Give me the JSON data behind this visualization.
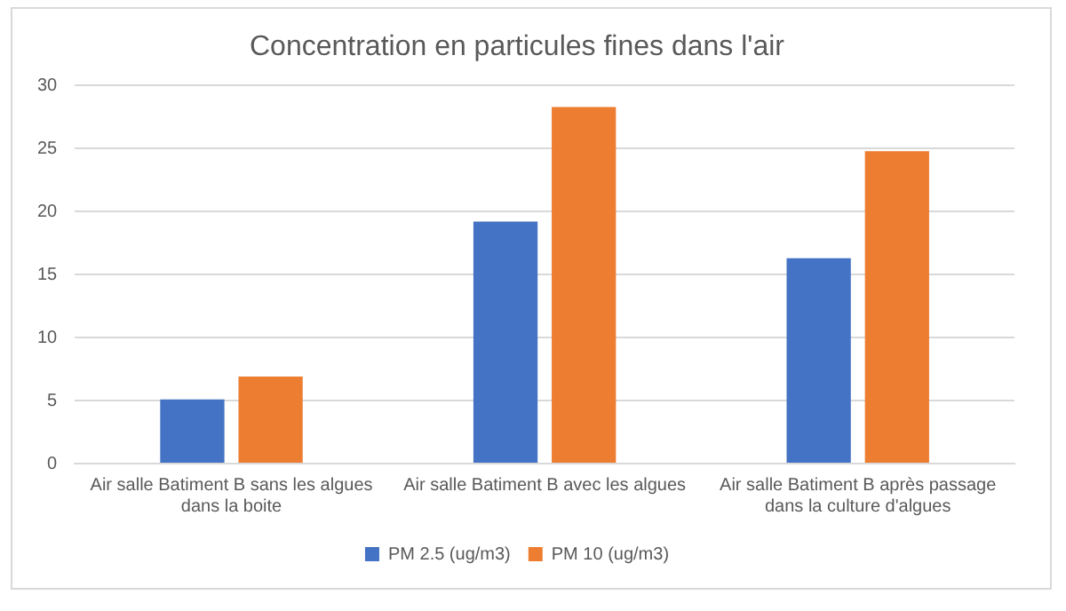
{
  "chart_data": {
    "type": "bar",
    "title": "Concentration en particules fines dans l'air",
    "categories": [
      "Air salle Batiment B sans les algues dans la boite",
      "Air salle Batiment B avec les algues",
      "Air salle Batiment B après passage dans la culture d'algues"
    ],
    "series": [
      {
        "name": "PM 2.5 (ug/m3)",
        "color": "#4472c4",
        "values": [
          5.1,
          19.2,
          16.3
        ]
      },
      {
        "name": "PM 10 (ug/m3)",
        "color": "#ed7d31",
        "values": [
          6.9,
          28.3,
          24.8
        ]
      }
    ],
    "ylim": [
      0,
      30
    ],
    "yticks": [
      0,
      5,
      10,
      15,
      20,
      25,
      30
    ],
    "grid": "y",
    "legend": "bottom"
  }
}
